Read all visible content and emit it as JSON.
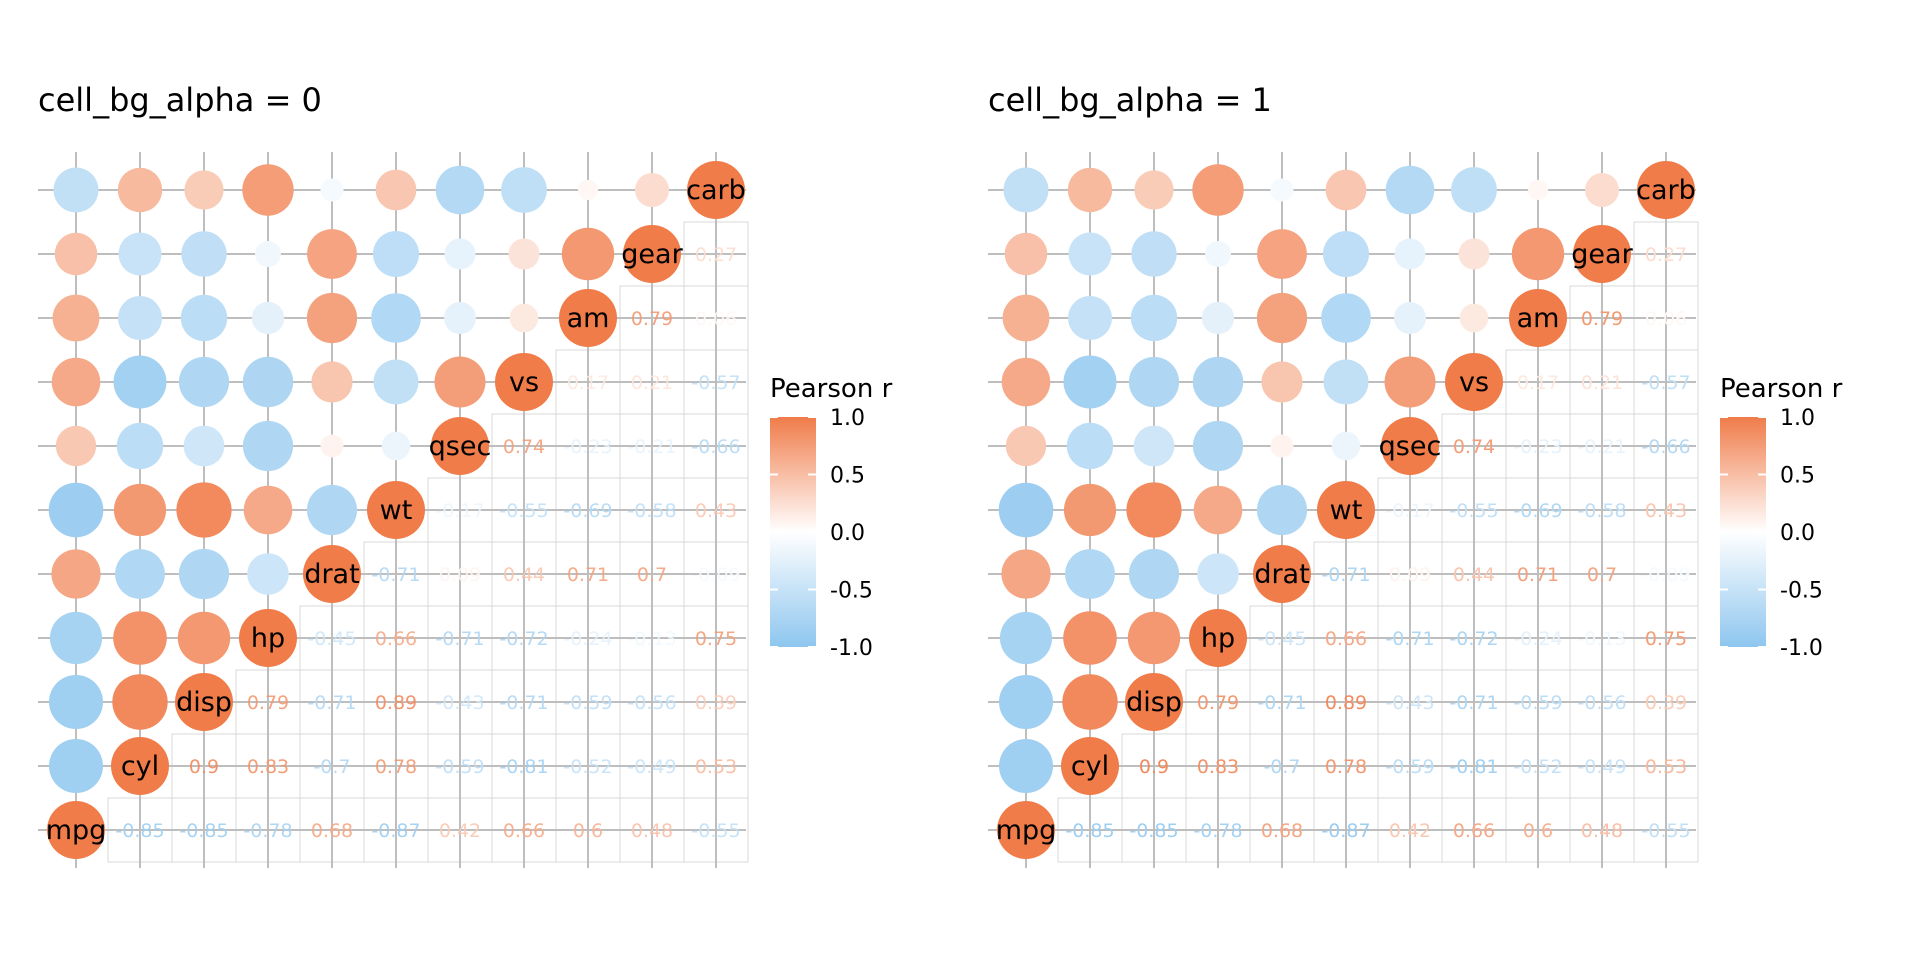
{
  "chart_data": [
    {
      "type": "heatmap",
      "subtype": "correlation-matrix",
      "title": "cell_bg_alpha = 0",
      "cell_bg_alpha": 0,
      "variables": [
        "mpg",
        "cyl",
        "disp",
        "hp",
        "drat",
        "wt",
        "qsec",
        "vs",
        "am",
        "gear",
        "carb"
      ],
      "lower": "circle",
      "upper": "number",
      "diagonal": "variable-label",
      "legend": {
        "title": "Pearson r",
        "ticks": [
          "1.0",
          "0.5",
          "0.0",
          "-0.5",
          "-1.0"
        ],
        "range": [
          -1,
          1
        ],
        "position": "right"
      },
      "colors": {
        "negative": "#8EC6EF",
        "mid": "#FFFFFF",
        "positive": "#F07C4A",
        "grid": "#BEBEBE",
        "cell_border": "#D9D9D9"
      }
    },
    {
      "type": "heatmap",
      "subtype": "correlation-matrix",
      "title": "cell_bg_alpha = 1",
      "cell_bg_alpha": 1,
      "variables": [
        "mpg",
        "cyl",
        "disp",
        "hp",
        "drat",
        "wt",
        "qsec",
        "vs",
        "am",
        "gear",
        "carb"
      ],
      "lower": "circle",
      "upper": "number",
      "diagonal": "variable-label",
      "legend": {
        "title": "Pearson r",
        "ticks": [
          "1.0",
          "0.5",
          "0.0",
          "-0.5",
          "-1.0"
        ],
        "range": [
          -1,
          1
        ],
        "position": "right"
      },
      "colors": {
        "negative": "#8EC6EF",
        "mid": "#FFFFFF",
        "positive": "#F07C4A",
        "grid": "#BEBEBE",
        "cell_border": "#D9D9D9"
      }
    }
  ],
  "correlations": {
    "matrix": [
      [
        1,
        -0.85,
        -0.85,
        -0.78,
        0.68,
        -0.87,
        0.42,
        0.66,
        0.6,
        0.48,
        -0.55
      ],
      [
        -0.85,
        1,
        0.9,
        0.83,
        -0.7,
        0.78,
        -0.59,
        -0.81,
        -0.52,
        -0.49,
        0.53
      ],
      [
        -0.85,
        0.9,
        1,
        0.79,
        -0.71,
        0.89,
        -0.43,
        -0.71,
        -0.59,
        -0.56,
        0.39
      ],
      [
        -0.78,
        0.83,
        0.79,
        1,
        -0.45,
        0.66,
        -0.71,
        -0.72,
        -0.24,
        -0.13,
        0.75
      ],
      [
        0.68,
        -0.7,
        -0.71,
        -0.45,
        1,
        -0.71,
        0.09,
        0.44,
        0.71,
        0.7,
        -0.09
      ],
      [
        -0.87,
        0.78,
        0.89,
        0.66,
        -0.71,
        1,
        -0.17,
        -0.55,
        -0.69,
        -0.58,
        0.43
      ],
      [
        0.42,
        -0.59,
        -0.43,
        -0.71,
        0.09,
        -0.17,
        1,
        0.74,
        -0.23,
        -0.21,
        -0.66
      ],
      [
        0.66,
        -0.81,
        -0.71,
        -0.72,
        0.44,
        -0.55,
        0.74,
        1,
        0.17,
        0.21,
        -0.57
      ],
      [
        0.6,
        -0.52,
        -0.59,
        -0.24,
        0.71,
        -0.69,
        -0.23,
        0.17,
        1,
        0.79,
        0.06
      ],
      [
        0.48,
        -0.49,
        -0.56,
        -0.13,
        0.7,
        -0.58,
        -0.21,
        0.21,
        0.79,
        1,
        0.27
      ],
      [
        -0.55,
        0.53,
        0.39,
        0.75,
        -0.09,
        0.43,
        -0.66,
        -0.57,
        0.06,
        0.27,
        1
      ]
    ],
    "labels": [
      [
        "1",
        "-0.85",
        "-0.85",
        "-0.78",
        "0.68",
        "-0.87",
        "0.42",
        "0.66",
        "0.6",
        "0.48",
        "-0.55"
      ],
      [
        "-0.85",
        "1",
        "0.9",
        "0.83",
        "-0.7",
        "0.78",
        "-0.59",
        "-0.81",
        "-0.52",
        "-0.49",
        "0.53"
      ],
      [
        "-0.85",
        "0.9",
        "1",
        "0.79",
        "-0.71",
        "0.89",
        "-0.43",
        "-0.71",
        "-0.59",
        "-0.56",
        "0.39"
      ],
      [
        "-0.78",
        "0.83",
        "0.79",
        "1",
        "-0.45",
        "0.66",
        "-0.71",
        "-0.72",
        "-0.24",
        "-0.13",
        "0.75"
      ],
      [
        "0.68",
        "-0.7",
        "-0.71",
        "-0.45",
        "1",
        "-0.71",
        "0.09",
        "0.44",
        "0.71",
        "0.7",
        "-0.09"
      ],
      [
        "-0.87",
        "0.78",
        "0.89",
        "0.66",
        "-0.71",
        "1",
        "-0.17",
        "-0.55",
        "-0.69",
        "-0.58",
        "0.43"
      ],
      [
        "0.42",
        "-0.59",
        "-0.43",
        "-0.71",
        "0.09",
        "-0.17",
        "1",
        "0.74",
        "-0.23",
        "-0.21",
        "-0.66"
      ],
      [
        "0.66",
        "-0.81",
        "-0.71",
        "-0.72",
        "0.44",
        "-0.55",
        "0.74",
        "1",
        "0.17",
        "0.21",
        "-0.57"
      ],
      [
        "0.6",
        "-0.52",
        "-0.59",
        "-0.24",
        "0.71",
        "-0.69",
        "-0.23",
        "0.17",
        "1",
        "0.79",
        "0.06"
      ],
      [
        "0.48",
        "-0.49",
        "-0.56",
        "-0.13",
        "0.7",
        "-0.58",
        "-0.21",
        "0.21",
        "0.79",
        "1",
        "0.27"
      ],
      [
        "-0.55",
        "0.53",
        "0.39",
        "0.75",
        "-0.09",
        "0.43",
        "-0.66",
        "-0.57",
        "0.06",
        "0.27",
        "1"
      ]
    ]
  }
}
